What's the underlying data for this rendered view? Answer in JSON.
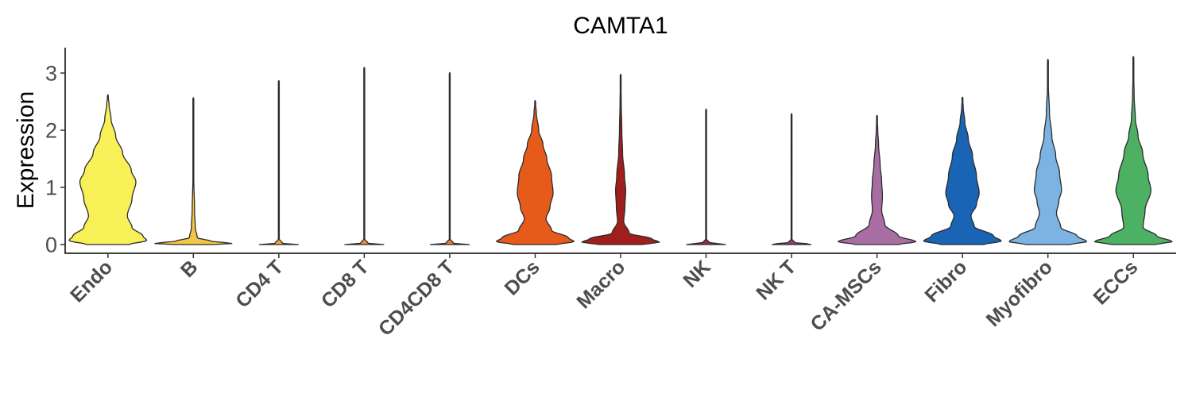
{
  "chart_data": {
    "type": "violin",
    "title": "CAMTA1",
    "xlabel": "",
    "ylabel": "Expression",
    "ylim": [
      -0.18,
      3.45
    ],
    "yticks": [
      0,
      1,
      2,
      3
    ],
    "grid": false,
    "legend": "none",
    "categories": [
      "Endo",
      "B",
      "CD4 T",
      "CD8 T",
      "CD4CD8 T",
      "DCs",
      "Macro",
      "NK",
      "NK T",
      "CA-MSCs",
      "Fibro",
      "Myofibro",
      "ECCs"
    ],
    "series": [
      {
        "category": "Endo",
        "color": "#f7f057",
        "max": 2.62,
        "profile": [
          [
            0,
            0.55
          ],
          [
            0.07,
            1.0
          ],
          [
            0.15,
            0.9
          ],
          [
            0.3,
            0.62
          ],
          [
            0.5,
            0.5
          ],
          [
            0.8,
            0.62
          ],
          [
            1.1,
            0.72
          ],
          [
            1.3,
            0.6
          ],
          [
            1.6,
            0.38
          ],
          [
            1.9,
            0.2
          ],
          [
            2.2,
            0.08
          ],
          [
            2.45,
            0.03
          ],
          [
            2.62,
            0
          ]
        ]
      },
      {
        "category": "B",
        "color": "#f2c744",
        "max": 2.57,
        "profile": [
          [
            0,
            0.5
          ],
          [
            0.02,
            1.0
          ],
          [
            0.06,
            0.45
          ],
          [
            0.12,
            0.1
          ],
          [
            0.3,
            0.05
          ],
          [
            0.6,
            0.03
          ],
          [
            1.2,
            0.01
          ],
          [
            2.57,
            0
          ]
        ]
      },
      {
        "category": "CD4 T",
        "color": "#f2a33b",
        "max": 2.87,
        "profile": [
          [
            0,
            0.5
          ],
          [
            0.01,
            1.0
          ],
          [
            0.02,
            0.1
          ],
          [
            0.1,
            0.008
          ],
          [
            2.87,
            0
          ]
        ]
      },
      {
        "category": "CD8 T",
        "color": "#f08a35",
        "max": 3.1,
        "profile": [
          [
            0,
            0.5
          ],
          [
            0.01,
            1.0
          ],
          [
            0.02,
            0.1
          ],
          [
            0.1,
            0.008
          ],
          [
            3.1,
            0
          ]
        ]
      },
      {
        "category": "CD4CD8 T",
        "color": "#ee7b2f",
        "max": 3.01,
        "profile": [
          [
            0,
            0.5
          ],
          [
            0.01,
            1.0
          ],
          [
            0.02,
            0.1
          ],
          [
            0.1,
            0.008
          ],
          [
            3.01,
            0
          ]
        ]
      },
      {
        "category": "DCs",
        "color": "#e65a1a",
        "max": 2.52,
        "profile": [
          [
            0,
            0.55
          ],
          [
            0.05,
            1.0
          ],
          [
            0.12,
            0.85
          ],
          [
            0.25,
            0.42
          ],
          [
            0.45,
            0.28
          ],
          [
            0.65,
            0.38
          ],
          [
            0.9,
            0.46
          ],
          [
            1.2,
            0.42
          ],
          [
            1.5,
            0.3
          ],
          [
            1.75,
            0.2
          ],
          [
            2.0,
            0.09
          ],
          [
            2.3,
            0.03
          ],
          [
            2.52,
            0
          ]
        ]
      },
      {
        "category": "Macro",
        "color": "#a01f1c",
        "max": 2.98,
        "profile": [
          [
            0,
            0.55
          ],
          [
            0.04,
            1.0
          ],
          [
            0.1,
            0.8
          ],
          [
            0.2,
            0.22
          ],
          [
            0.4,
            0.08
          ],
          [
            0.65,
            0.11
          ],
          [
            0.95,
            0.13
          ],
          [
            1.2,
            0.1
          ],
          [
            1.6,
            0.05
          ],
          [
            2.0,
            0.03
          ],
          [
            2.5,
            0.015
          ],
          [
            2.98,
            0
          ]
        ]
      },
      {
        "category": "NK",
        "color": "#8a2f5e",
        "max": 2.37,
        "profile": [
          [
            0,
            0.5
          ],
          [
            0.01,
            1.0
          ],
          [
            0.02,
            0.1
          ],
          [
            0.1,
            0.008
          ],
          [
            2.37,
            0
          ]
        ]
      },
      {
        "category": "NK T",
        "color": "#8f3f77",
        "max": 2.29,
        "profile": [
          [
            0,
            0.5
          ],
          [
            0.01,
            1.0
          ],
          [
            0.02,
            0.1
          ],
          [
            0.1,
            0.008
          ],
          [
            1.6,
            0.012
          ],
          [
            2.29,
            0
          ]
        ]
      },
      {
        "category": "CA-MSCs",
        "color": "#a86ea3",
        "max": 2.26,
        "profile": [
          [
            0,
            0.55
          ],
          [
            0.05,
            1.0
          ],
          [
            0.15,
            0.55
          ],
          [
            0.35,
            0.2
          ],
          [
            0.6,
            0.12
          ],
          [
            0.85,
            0.14
          ],
          [
            1.1,
            0.12
          ],
          [
            1.4,
            0.08
          ],
          [
            1.75,
            0.04
          ],
          [
            2.0,
            0.02
          ],
          [
            2.26,
            0
          ]
        ]
      },
      {
        "category": "Fibro",
        "color": "#1964b4",
        "max": 2.58,
        "profile": [
          [
            0,
            0.55
          ],
          [
            0.06,
            1.0
          ],
          [
            0.15,
            0.8
          ],
          [
            0.32,
            0.3
          ],
          [
            0.5,
            0.22
          ],
          [
            0.7,
            0.36
          ],
          [
            0.9,
            0.43
          ],
          [
            1.2,
            0.36
          ],
          [
            1.55,
            0.26
          ],
          [
            1.85,
            0.15
          ],
          [
            2.15,
            0.06
          ],
          [
            2.4,
            0.02
          ],
          [
            2.58,
            0
          ]
        ]
      },
      {
        "category": "Myofibro",
        "color": "#7bb3e2",
        "max": 3.24,
        "profile": [
          [
            0,
            0.55
          ],
          [
            0.05,
            1.0
          ],
          [
            0.15,
            0.75
          ],
          [
            0.3,
            0.33
          ],
          [
            0.55,
            0.22
          ],
          [
            0.75,
            0.28
          ],
          [
            0.95,
            0.35
          ],
          [
            1.25,
            0.3
          ],
          [
            1.55,
            0.2
          ],
          [
            1.9,
            0.1
          ],
          [
            2.3,
            0.04
          ],
          [
            2.8,
            0.01
          ],
          [
            3.24,
            0
          ]
        ]
      },
      {
        "category": "ECCs",
        "color": "#4cb163",
        "max": 3.29,
        "profile": [
          [
            0,
            0.55
          ],
          [
            0.05,
            1.0
          ],
          [
            0.15,
            0.6
          ],
          [
            0.3,
            0.25
          ],
          [
            0.6,
            0.3
          ],
          [
            0.95,
            0.45
          ],
          [
            1.2,
            0.38
          ],
          [
            1.6,
            0.24
          ],
          [
            1.9,
            0.12
          ],
          [
            2.2,
            0.05
          ],
          [
            2.6,
            0.02
          ],
          [
            3.0,
            0.008
          ],
          [
            3.29,
            0
          ]
        ]
      }
    ]
  }
}
